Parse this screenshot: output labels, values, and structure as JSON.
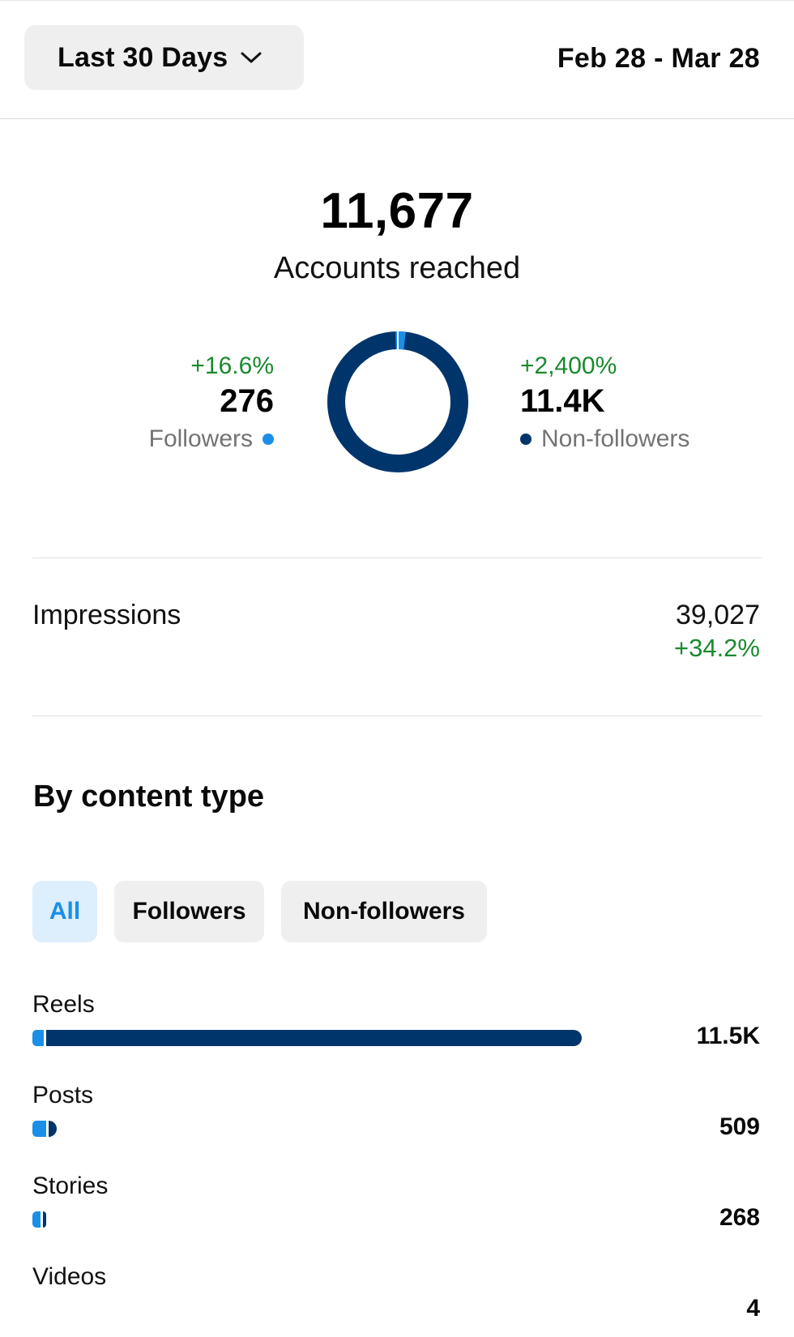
{
  "header": {
    "range_label": "Last 30 Days",
    "date_range": "Feb 28 - Mar 28"
  },
  "reach": {
    "value": "11,677",
    "label": "Accounts reached",
    "followers": {
      "change": "+16.6%",
      "value": "276",
      "label": "Followers",
      "color": "#1a8fe8"
    },
    "non_followers": {
      "change": "+2,400%",
      "value": "11.4K",
      "label": "Non-followers",
      "color": "#00356b"
    },
    "followers_fraction": 0.0236
  },
  "impressions": {
    "label": "Impressions",
    "value": "39,027",
    "change": "+34.2%",
    "change_color": "#1a8a2e"
  },
  "content_type": {
    "title": "By content type",
    "filters": [
      "All",
      "Followers",
      "Non-followers"
    ],
    "active_filter": "All",
    "rows": [
      {
        "label": "Reels",
        "value": "11.5K",
        "total": 11500,
        "followers_fraction": 0.02
      },
      {
        "label": "Posts",
        "value": "509",
        "total": 509,
        "followers_fraction": 0.55
      },
      {
        "label": "Stories",
        "value": "268",
        "total": 268,
        "followers_fraction": 0.6
      },
      {
        "label": "Videos",
        "value": "4",
        "total": 4,
        "followers_fraction": 0.5
      }
    ]
  },
  "icons": {
    "dropdown": "chevron-down-icon"
  }
}
